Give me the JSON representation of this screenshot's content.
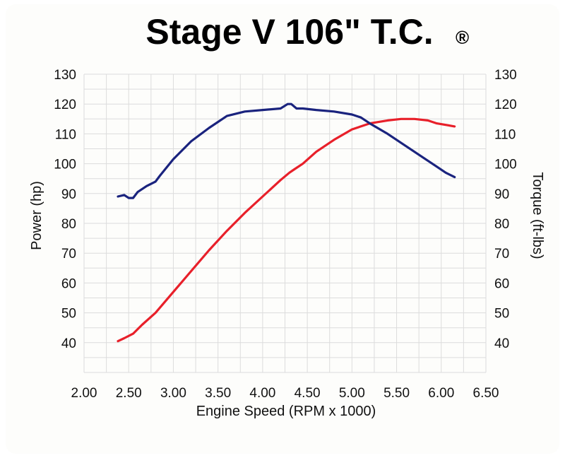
{
  "chart_data": {
    "type": "line",
    "title": "Stage V 106\" T.C.",
    "title_mark": "®",
    "xlabel": "Engine Speed (RPM x 1000)",
    "ylabel_left": "Power (hp)",
    "ylabel_right": "Torque (ft-lbs)",
    "xlim": [
      2.0,
      6.5
    ],
    "ylim": [
      30,
      130
    ],
    "xticks": [
      "2.00",
      "2.50",
      "3.00",
      "3.50",
      "4.00",
      "4.50",
      "5.00",
      "5.50",
      "6.00",
      "6.50"
    ],
    "yticks": [
      "40",
      "50",
      "60",
      "70",
      "80",
      "90",
      "100",
      "110",
      "120",
      "130"
    ],
    "grid": true,
    "legend": "none",
    "series": [
      {
        "color": "#e8202a",
        "x": [
          2.38,
          2.45,
          2.55,
          2.65,
          2.8,
          3.0,
          3.2,
          3.4,
          3.6,
          3.8,
          4.0,
          4.2,
          4.3,
          4.35,
          4.45,
          4.6,
          4.8,
          5.0,
          5.2,
          5.4,
          5.55,
          5.7,
          5.85,
          5.95,
          6.05,
          6.15
        ],
        "y": [
          40.5,
          41.5,
          43,
          46,
          50,
          57,
          64,
          71,
          77.5,
          83.5,
          89,
          94.5,
          97,
          98,
          100,
          104,
          108,
          111.5,
          113.5,
          114.5,
          115,
          115,
          114.5,
          113.5,
          113,
          112.5
        ]
      },
      {
        "color": "#1a237e",
        "x": [
          2.38,
          2.45,
          2.5,
          2.55,
          2.6,
          2.7,
          2.8,
          2.85,
          3.0,
          3.2,
          3.4,
          3.6,
          3.8,
          4.0,
          4.2,
          4.28,
          4.32,
          4.38,
          4.45,
          4.6,
          4.8,
          5.0,
          5.1,
          5.2,
          5.4,
          5.6,
          5.8,
          5.95,
          6.05,
          6.15
        ],
        "y": [
          89,
          89.5,
          88.5,
          88.5,
          90.5,
          92.5,
          94,
          96,
          101.5,
          107.5,
          112,
          116,
          117.5,
          118,
          118.5,
          120,
          120,
          118.5,
          118.5,
          118,
          117.5,
          116.5,
          115.5,
          113.5,
          110,
          106,
          102,
          99,
          97,
          95.5
        ]
      }
    ]
  }
}
